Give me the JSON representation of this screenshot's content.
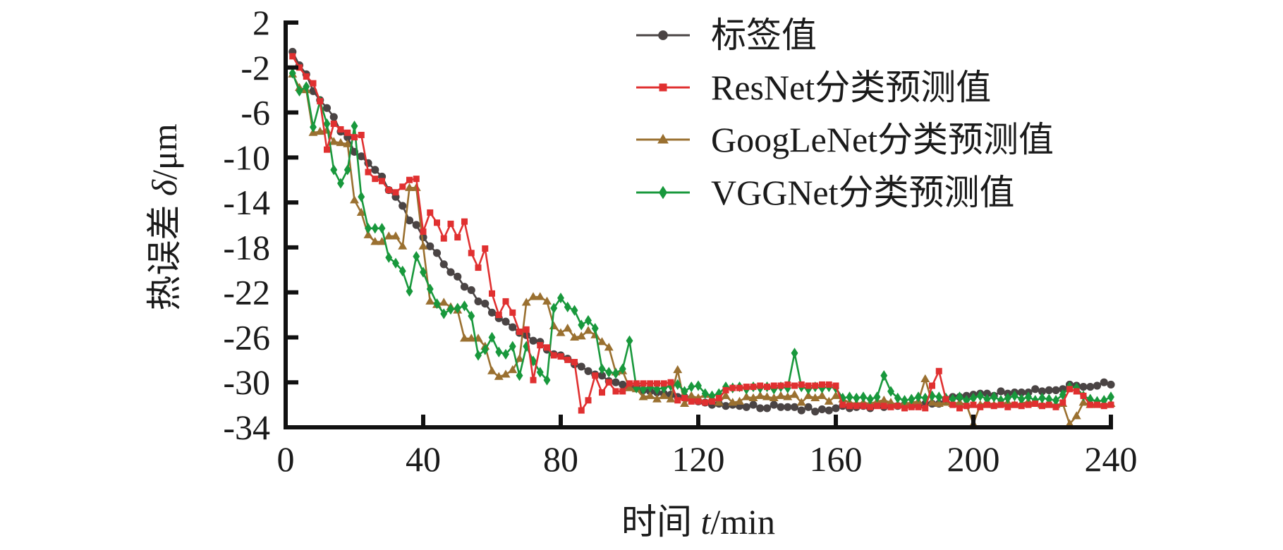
{
  "chart_data": {
    "type": "line",
    "title": "",
    "xlabel": "时间 t/min",
    "xlabel_parts": {
      "prefix": "时间 ",
      "var": "t",
      "suffix": "/min"
    },
    "ylabel": "热误差 δ/μm",
    "ylabel_parts": {
      "prefix": "热误差 ",
      "var": "δ",
      "suffix": "/μm"
    },
    "xlim": [
      0,
      240
    ],
    "ylim": [
      -34,
      2
    ],
    "xticks": [
      0,
      40,
      80,
      120,
      160,
      200,
      240
    ],
    "xtick_labels": [
      "0",
      "40",
      "80",
      "120",
      "160",
      "200",
      "240"
    ],
    "yticks": [
      2,
      -2,
      -6,
      -10,
      -14,
      -18,
      -22,
      -26,
      -30,
      -34
    ],
    "ytick_labels": [
      "2",
      "-2",
      "-6",
      "-10",
      "-14",
      "-18",
      "-22",
      "-26",
      "-30",
      "-34"
    ],
    "grid": false,
    "legend_position": "top-right",
    "x": [
      2,
      4,
      6,
      8,
      10,
      12,
      14,
      16,
      18,
      20,
      22,
      24,
      26,
      28,
      30,
      32,
      34,
      36,
      38,
      40,
      42,
      44,
      46,
      48,
      50,
      52,
      54,
      56,
      58,
      60,
      62,
      64,
      66,
      68,
      70,
      72,
      74,
      76,
      78,
      80,
      82,
      84,
      86,
      88,
      90,
      92,
      94,
      96,
      98,
      100,
      102,
      104,
      106,
      108,
      110,
      112,
      114,
      116,
      118,
      120,
      122,
      124,
      126,
      128,
      130,
      132,
      134,
      136,
      138,
      140,
      142,
      144,
      146,
      148,
      150,
      152,
      154,
      156,
      158,
      160,
      162,
      164,
      166,
      168,
      170,
      172,
      174,
      176,
      178,
      180,
      182,
      184,
      186,
      188,
      190,
      192,
      194,
      196,
      198,
      200,
      202,
      204,
      206,
      208,
      210,
      212,
      214,
      216,
      218,
      220,
      222,
      224,
      226,
      228,
      230,
      232,
      234,
      236,
      238,
      240
    ],
    "series": [
      {
        "name": "标签值",
        "color": "#4a4444",
        "marker": "circle",
        "values": [
          -0.6,
          -1.8,
          -2.6,
          -4.1,
          -4.9,
          -5.6,
          -6.4,
          -7.7,
          -8.2,
          -9.5,
          -9.9,
          -10.5,
          -11.1,
          -11.7,
          -12.9,
          -13.5,
          -14.3,
          -15.6,
          -16.0,
          -17.1,
          -17.9,
          -18.5,
          -19.5,
          -20.2,
          -20.6,
          -21.5,
          -21.8,
          -22.8,
          -23.0,
          -23.8,
          -24.3,
          -24.6,
          -25.1,
          -25.6,
          -25.8,
          -26.3,
          -26.4,
          -27.1,
          -27.5,
          -27.6,
          -27.9,
          -28.4,
          -28.6,
          -29.0,
          -29.3,
          -29.4,
          -29.9,
          -30.0,
          -30.2,
          -30.4,
          -30.4,
          -30.7,
          -30.8,
          -30.9,
          -31.0,
          -31.1,
          -31.3,
          -31.3,
          -31.5,
          -31.7,
          -31.8,
          -32.0,
          -31.9,
          -32.1,
          -32.0,
          -32.1,
          -32.2,
          -32.0,
          -32.3,
          -32.3,
          -32.0,
          -32.2,
          -32.2,
          -32.2,
          -32.5,
          -32.2,
          -32.6,
          -32.4,
          -32.5,
          -32.3,
          -32.1,
          -32.3,
          -32.2,
          -32.1,
          -32.3,
          -32.0,
          -32.2,
          -32.1,
          -32.1,
          -32.0,
          -32.1,
          -32.0,
          -31.9,
          -31.9,
          -31.9,
          -31.5,
          -31.3,
          -31.3,
          -31.2,
          -31.1,
          -31.0,
          -31.0,
          -31.2,
          -30.8,
          -31.0,
          -30.9,
          -30.9,
          -30.9,
          -30.6,
          -30.8,
          -30.7,
          -30.7,
          -30.6,
          -30.2,
          -30.3,
          -30.4,
          -30.4,
          -30.3,
          -30.0,
          -30.2
        ]
      },
      {
        "name": "ResNet分类预测值",
        "color": "#e03030",
        "marker": "square",
        "values": [
          -1.0,
          -2.0,
          -2.8,
          -3.4,
          -5.0,
          -9.3,
          -7.0,
          -7.5,
          -7.8,
          -8.2,
          -8.0,
          -11.3,
          -11.9,
          -12.1,
          -12.9,
          -13.1,
          -12.6,
          -12.0,
          -11.9,
          -16.6,
          -14.9,
          -15.8,
          -17.2,
          -15.9,
          -17.1,
          -15.7,
          -18.5,
          -19.8,
          -18.1,
          -22.1,
          -24.0,
          -22.8,
          -23.8,
          -25.5,
          -25.3,
          -29.8,
          -26.7,
          -26.9,
          -27.6,
          -27.7,
          -28.0,
          -28.2,
          -32.5,
          -31.6,
          -29.4,
          -30.9,
          -30.0,
          -30.8,
          -30.8,
          -30.1,
          -30.1,
          -30.1,
          -30.1,
          -30.1,
          -30.1,
          -30.0,
          -31.6,
          -31.4,
          -31.7,
          -31.7,
          -31.8,
          -31.7,
          -31.4,
          -30.7,
          -30.5,
          -30.5,
          -30.4,
          -30.4,
          -30.3,
          -30.4,
          -30.3,
          -30.3,
          -30.2,
          -30.3,
          -30.2,
          -30.3,
          -30.3,
          -30.2,
          -30.2,
          -30.3,
          -32.0,
          -32.1,
          -32.1,
          -32.1,
          -32.2,
          -32.1,
          -32.1,
          -32.2,
          -32.1,
          -32.3,
          -32.2,
          -32.2,
          -32.3,
          -30.3,
          -29.0,
          -31.5,
          -32.0,
          -32.3,
          -32.1,
          -32.0,
          -32.2,
          -32.0,
          -32.1,
          -32.0,
          -32.2,
          -32.0,
          -32.1,
          -32.0,
          -31.9,
          -32.1,
          -32.0,
          -32.2,
          -31.8,
          -30.6,
          -30.8,
          -31.2,
          -32.0,
          -32.0,
          -32.1,
          -32.0
        ]
      },
      {
        "name": "GoogLeNet分类预测值",
        "color": "#9a7030",
        "marker": "triangle",
        "values": [
          -2.6,
          -3.8,
          -4.0,
          -7.8,
          -7.7,
          -7.6,
          -8.6,
          -8.7,
          -8.8,
          -13.8,
          -14.9,
          -16.9,
          -17.5,
          -17.5,
          -17.0,
          -17.0,
          -17.9,
          -12.7,
          -12.7,
          -17.9,
          -22.8,
          -23.1,
          -22.9,
          -23.3,
          -23.6,
          -26.1,
          -26.1,
          -26.1,
          -26.8,
          -29.0,
          -29.5,
          -29.3,
          -28.9,
          -27.9,
          -22.9,
          -22.4,
          -22.4,
          -22.8,
          -25.0,
          -25.6,
          -25.2,
          -26.0,
          -25.9,
          -25.4,
          -25.8,
          -26.4,
          -26.9,
          -29.1,
          -29.0,
          -30.5,
          -30.6,
          -31.3,
          -31.2,
          -31.5,
          -31.2,
          -31.5,
          -28.9,
          -31.9,
          -31.2,
          -31.4,
          -31.1,
          -31.4,
          -31.8,
          -31.2,
          -31.8,
          -31.7,
          -31.3,
          -31.4,
          -31.2,
          -31.3,
          -31.4,
          -31.2,
          -31.3,
          -31.1,
          -31.8,
          -31.2,
          -31.4,
          -31.2,
          -31.7,
          -31.2,
          -31.5,
          -31.8,
          -31.9,
          -31.8,
          -31.9,
          -31.7,
          -31.6,
          -31.8,
          -32.0,
          -31.9,
          -31.8,
          -31.7,
          -29.7,
          -31.8,
          -31.9,
          -31.8,
          -31.9,
          -31.8,
          -32.0,
          -33.7,
          -32.0,
          -31.8,
          -32.0,
          -31.9,
          -31.8,
          -32.0,
          -31.9,
          -31.7,
          -31.9,
          -32.0,
          -31.9,
          -32.0,
          -31.9,
          -33.7,
          -33.0,
          -31.8,
          -32.0,
          -31.9,
          -32.0,
          -31.9
        ]
      },
      {
        "name": "VGGNet分类预测值",
        "color": "#18983c",
        "marker": "diamond",
        "values": [
          -2.5,
          -4.1,
          -3.7,
          -7.3,
          -5.0,
          -7.0,
          -11.1,
          -12.3,
          -11.1,
          -7.2,
          -13.5,
          -16.3,
          -16.3,
          -16.3,
          -18.9,
          -19.4,
          -20.1,
          -21.9,
          -18.8,
          -20.2,
          -21.7,
          -23.0,
          -23.9,
          -23.5,
          -23.4,
          -23.2,
          -24.1,
          -27.6,
          -27.1,
          -26.0,
          -27.3,
          -27.5,
          -26.8,
          -29.4,
          -26.8,
          -28.1,
          -29.1,
          -29.8,
          -23.4,
          -22.5,
          -23.3,
          -23.6,
          -24.9,
          -24.5,
          -25.2,
          -28.8,
          -29.1,
          -29.2,
          -28.8,
          -26.3,
          -30.5,
          -30.6,
          -30.4,
          -30.6,
          -30.5,
          -30.3,
          -30.2,
          -30.8,
          -30.4,
          -30.3,
          -31.0,
          -31.2,
          -31.0,
          -30.4,
          -30.5,
          -30.4,
          -30.6,
          -30.4,
          -30.5,
          -30.4,
          -30.6,
          -30.4,
          -30.5,
          -27.4,
          -30.4,
          -30.6,
          -30.4,
          -30.5,
          -30.4,
          -30.5,
          -31.4,
          -31.3,
          -31.4,
          -31.3,
          -31.5,
          -31.3,
          -29.4,
          -30.8,
          -31.4,
          -31.6,
          -31.5,
          -31.3,
          -31.4,
          -31.2,
          -31.3,
          -31.4,
          -31.5,
          -31.3,
          -31.6,
          -31.4,
          -31.2,
          -31.5,
          -31.3,
          -31.6,
          -31.4,
          -31.2,
          -31.5,
          -31.3,
          -31.6,
          -31.4,
          -31.5,
          -31.6,
          -31.1,
          -30.4,
          -30.5,
          -31.2,
          -31.5,
          -31.7,
          -31.6,
          -31.3
        ]
      }
    ]
  }
}
